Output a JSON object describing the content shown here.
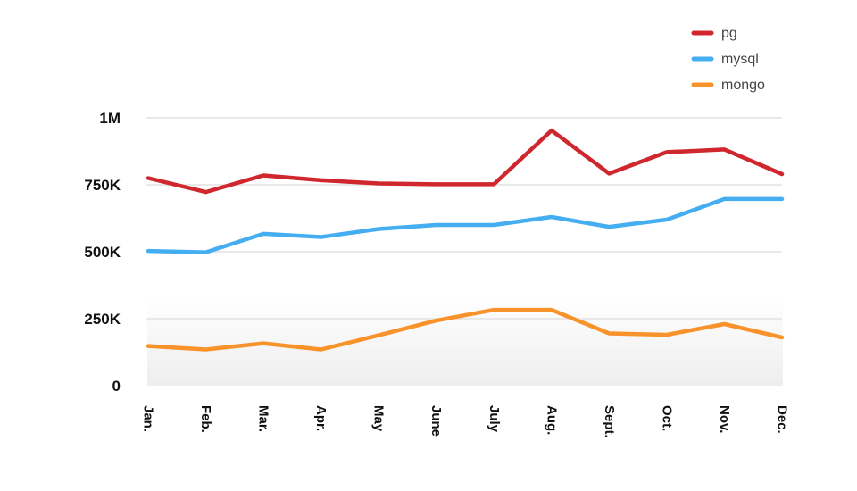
{
  "chart_data": {
    "type": "line",
    "categories": [
      "Jan.",
      "Feb.",
      "Mar.",
      "Apr.",
      "May",
      "June",
      "July",
      "Aug.",
      "Sept.",
      "Oct.",
      "Nov.",
      "Dec."
    ],
    "series": [
      {
        "name": "pg",
        "color": "#d0262e",
        "values": [
          775000,
          723000,
          785000,
          767000,
          755000,
          752000,
          752000,
          953000,
          792000,
          872000,
          882000,
          790000
        ]
      },
      {
        "name": "mysql",
        "color": "#45aef0",
        "values": [
          503000,
          498000,
          567000,
          555000,
          585000,
          600000,
          600000,
          630000,
          593000,
          620000,
          697000,
          697000
        ]
      },
      {
        "name": "mongo",
        "color": "#f8922a",
        "values": [
          148000,
          135000,
          158000,
          135000,
          188000,
          243000,
          283000,
          283000,
          195000,
          190000,
          230000,
          180000
        ]
      }
    ],
    "ylim": [
      0,
      1000000
    ],
    "yticks": [
      0,
      250000,
      500000,
      750000,
      1000000
    ],
    "ytick_labels": [
      "0",
      "250K",
      "500K",
      "750K",
      "1M"
    ],
    "grid": true,
    "legend_position": "top-right"
  }
}
